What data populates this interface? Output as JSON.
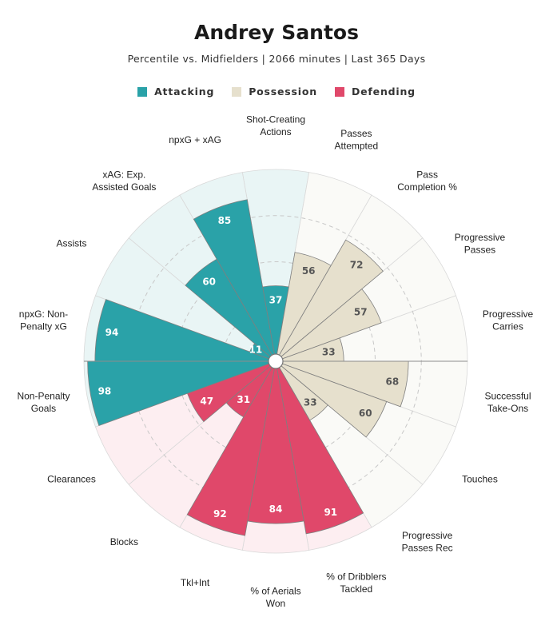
{
  "chart_data": {
    "type": "radial-bar",
    "title": "Andrey Santos",
    "subtitle": "Percentile vs. Midfielders | 2066 minutes | Last 365 Days",
    "legend": [
      {
        "name": "Attacking",
        "color": "#2aa2a8"
      },
      {
        "name": "Possession",
        "color": "#e6e0cd"
      },
      {
        "name": "Defending",
        "color": "#e0486a"
      }
    ],
    "range": [
      0,
      100
    ],
    "categories": [
      {
        "label": [
          "Shot-Creating",
          "Actions"
        ],
        "value": 37,
        "group": "Attacking"
      },
      {
        "label": [
          "Passes",
          "Attempted"
        ],
        "value": 56,
        "group": "Possession"
      },
      {
        "label": [
          "Pass",
          "Completion %"
        ],
        "value": 72,
        "group": "Possession"
      },
      {
        "label": [
          "Progressive",
          "Passes"
        ],
        "value": 57,
        "group": "Possession"
      },
      {
        "label": [
          "Progressive",
          "Carries"
        ],
        "value": 33,
        "group": "Possession"
      },
      {
        "label": [
          "Successful",
          "Take-Ons"
        ],
        "value": 68,
        "group": "Possession"
      },
      {
        "label": [
          "Touches"
        ],
        "value": 60,
        "group": "Possession"
      },
      {
        "label": [
          "Progressive",
          "Passes Rec"
        ],
        "value": 33,
        "group": "Possession"
      },
      {
        "label": [
          "% of Dribblers",
          "Tackled"
        ],
        "value": 91,
        "group": "Defending"
      },
      {
        "label": [
          "% of Aerials",
          "Won"
        ],
        "value": 84,
        "group": "Defending"
      },
      {
        "label": [
          "Tkl+Int"
        ],
        "value": 92,
        "group": "Defending"
      },
      {
        "label": [
          "Blocks"
        ],
        "value": 31,
        "group": "Defending"
      },
      {
        "label": [
          "Clearances"
        ],
        "value": 47,
        "group": "Defending"
      },
      {
        "label": [
          "Non-Penalty",
          "Goals"
        ],
        "value": 98,
        "group": "Attacking"
      },
      {
        "label": [
          "npxG: Non-",
          "Penalty xG"
        ],
        "value": 94,
        "group": "Attacking"
      },
      {
        "label": [
          "Assists"
        ],
        "value": 11,
        "group": "Attacking"
      },
      {
        "label": [
          "xAG: Exp.",
          "Assisted Goals"
        ],
        "value": 60,
        "group": "Attacking"
      },
      {
        "label": [
          "npxG + xAG"
        ],
        "value": 85,
        "group": "Attacking"
      }
    ]
  }
}
